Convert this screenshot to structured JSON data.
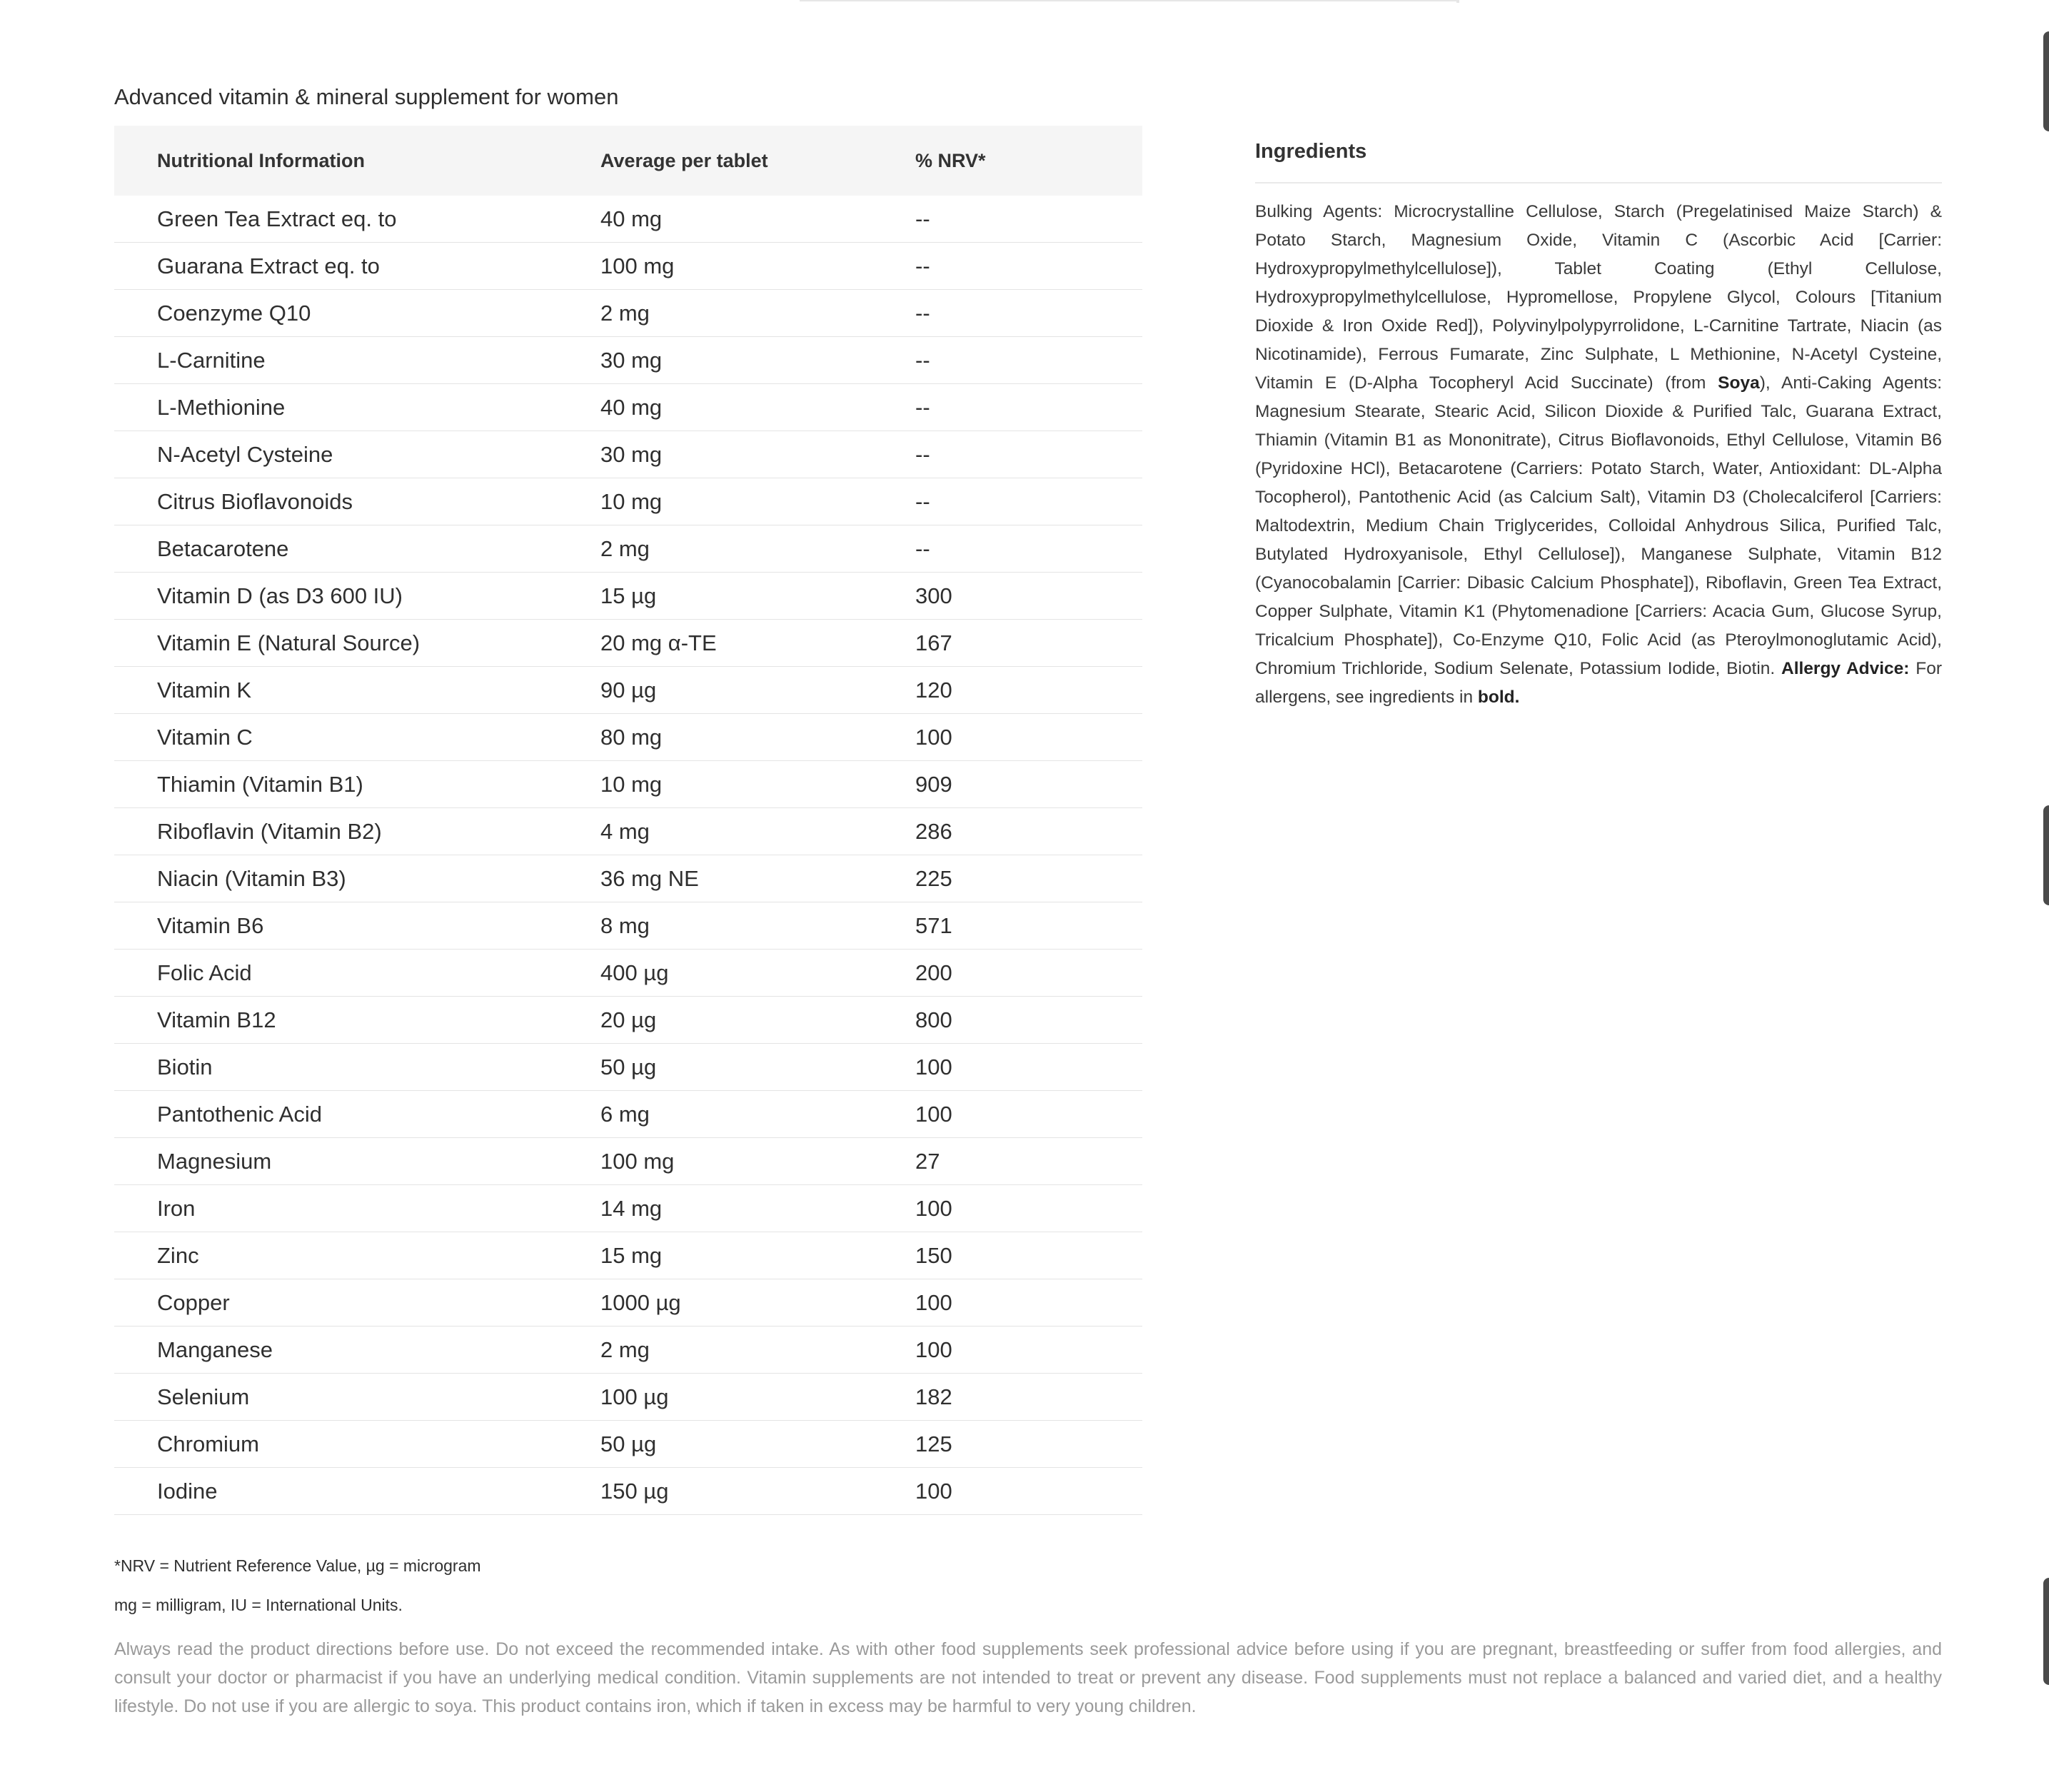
{
  "page_title": "Advanced vitamin & mineral supplement for women",
  "table": {
    "headers": {
      "name": "Nutritional Information",
      "average": "Average per tablet",
      "nrv": "% NRV*"
    },
    "rows": [
      {
        "name": "Green Tea Extract eq. to",
        "average": "40 mg",
        "nrv": "--"
      },
      {
        "name": "Guarana Extract eq. to",
        "average": "100 mg",
        "nrv": "--"
      },
      {
        "name": "Coenzyme Q10",
        "average": "2 mg",
        "nrv": "--"
      },
      {
        "name": "L-Carnitine",
        "average": "30 mg",
        "nrv": "--"
      },
      {
        "name": "L-Methionine",
        "average": "40 mg",
        "nrv": "--"
      },
      {
        "name": "N-Acetyl Cysteine",
        "average": "30 mg",
        "nrv": "--"
      },
      {
        "name": "Citrus Bioflavonoids",
        "average": "10 mg",
        "nrv": "--"
      },
      {
        "name": "Betacarotene",
        "average": "2 mg",
        "nrv": "--"
      },
      {
        "name": "Vitamin D (as D3 600 IU)",
        "average": "15 µg",
        "nrv": "300"
      },
      {
        "name": "Vitamin E (Natural Source)",
        "average": "20 mg α-TE",
        "nrv": "167"
      },
      {
        "name": "Vitamin K",
        "average": "90 µg",
        "nrv": "120"
      },
      {
        "name": "Vitamin C",
        "average": "80 mg",
        "nrv": "100"
      },
      {
        "name": "Thiamin (Vitamin B1)",
        "average": "10 mg",
        "nrv": "909"
      },
      {
        "name": "Riboflavin (Vitamin B2)",
        "average": "4 mg",
        "nrv": "286"
      },
      {
        "name": "Niacin (Vitamin B3)",
        "average": "36 mg NE",
        "nrv": "225"
      },
      {
        "name": "Vitamin B6",
        "average": "8 mg",
        "nrv": "571"
      },
      {
        "name": "Folic Acid",
        "average": "400 µg",
        "nrv": "200"
      },
      {
        "name": "Vitamin B12",
        "average": "20 µg",
        "nrv": "800"
      },
      {
        "name": "Biotin",
        "average": "50 µg",
        "nrv": "100"
      },
      {
        "name": "Pantothenic Acid",
        "average": "6 mg",
        "nrv": "100"
      },
      {
        "name": "Magnesium",
        "average": "100 mg",
        "nrv": "27"
      },
      {
        "name": "Iron",
        "average": "14 mg",
        "nrv": "100"
      },
      {
        "name": "Zinc",
        "average": "15 mg",
        "nrv": "150"
      },
      {
        "name": "Copper",
        "average": "1000 µg",
        "nrv": "100"
      },
      {
        "name": "Manganese",
        "average": "2 mg",
        "nrv": "100"
      },
      {
        "name": "Selenium",
        "average": "100 µg",
        "nrv": "182"
      },
      {
        "name": "Chromium",
        "average": "50 µg",
        "nrv": "125"
      },
      {
        "name": "Iodine",
        "average": "150 µg",
        "nrv": "100"
      }
    ]
  },
  "ingredients": {
    "title": "Ingredients",
    "text_1": "Bulking Agents: Microcrystalline Cellulose, Starch (Pregelatinised Maize Starch) & Potato Starch, Magnesium Oxide, Vitamin C (Ascorbic Acid [Carrier: Hydroxypropylmethylcellulose]), Tablet Coating (Ethyl Cellulose, Hydroxypropylmethylcellulose, Hypromellose, Propylene Glycol, Colours [Titanium Dioxide & Iron Oxide Red]), Polyvinylpolypyrrolidone, L-Carnitine Tartrate, Niacin (as Nicotinamide), Ferrous Fumarate, Zinc Sulphate, L Methionine, N-Acetyl Cysteine, Vitamin E (D-Alpha Tocopheryl Acid Succinate) (from ",
    "allergen": "Soya",
    "text_2": "), Anti-Caking Agents: Magnesium Stearate, Stearic Acid, Silicon Dioxide & Purified Talc, Guarana Extract, Thiamin (Vitamin B1 as Mononitrate), Citrus Bioflavonoids, Ethyl Cellulose, Vitamin B6 (Pyridoxine HCl), Betacarotene (Carriers: Potato Starch, Water, Antioxidant: DL-Alpha Tocopherol), Pantothenic Acid (as Calcium Salt), Vitamin D3 (Cholecalciferol [Carriers: Maltodextrin, Medium Chain Triglycerides, Colloidal Anhydrous Silica, Purified Talc, Butylated Hydroxyanisole, Ethyl Cellulose]), Manganese Sulphate, Vitamin B12 (Cyanocobalamin [Carrier: Dibasic Calcium Phosphate]), Riboflavin, Green Tea Extract, Copper Sulphate, Vitamin K1 (Phytomenadione [Carriers: Acacia Gum, Glucose Syrup, Tricalcium Phosphate]), Co-Enzyme Q10, Folic Acid (as Pteroylmonoglutamic Acid), Chromium Trichloride, Sodium Selenate, Potassium Iodide, Biotin. ",
    "allergy_label": "Allergy Advice:",
    "text_3": " For allergens, see ingredients in ",
    "bold_word": "bold."
  },
  "footnotes": {
    "line_1": "*NRV = Nutrient Reference Value, µg = microgram",
    "line_2": "mg = milligram, IU = International Units."
  },
  "disclaimer": "Always read the product directions before use. Do not exceed the recommended intake. As with other food supplements seek professional advice before using if you are pregnant, breastfeeding or suffer from food allergies, and consult your doctor or pharmacist if you have an underlying medical condition. Vitamin supplements are not intended to treat or prevent any disease. Food supplements must not replace a balanced and varied diet, and a healthy lifestyle. Do not use if you are allergic to soya. This product contains iron, which if taken in excess may be harmful to very young children."
}
